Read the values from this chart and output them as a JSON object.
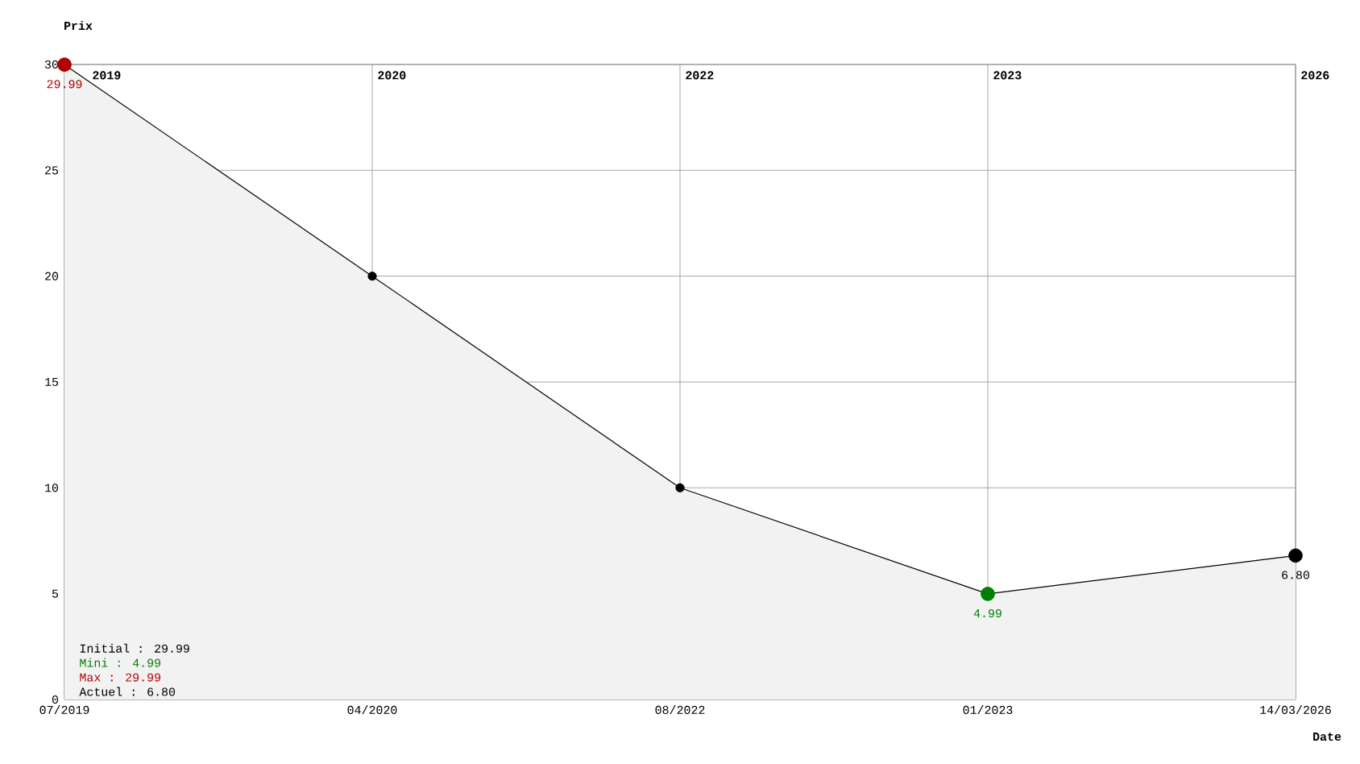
{
  "chart_data": {
    "type": "area",
    "xlabel": "Date",
    "ylabel": "Prix",
    "categories": [
      "07/2019",
      "04/2020",
      "08/2022",
      "01/2023",
      "14/03/2026"
    ],
    "series": [
      {
        "color": "#000000",
        "values": [
          29.99,
          20,
          10,
          4.99,
          6.8
        ]
      }
    ],
    "colors": [
      "#b00000",
      "#000000",
      "#000000",
      "#008000",
      "#000000"
    ],
    "value_labels": [
      "29.99",
      null,
      null,
      "4.99",
      "6.80"
    ],
    "marker": "circle",
    "grid": true,
    "ylim": [
      0,
      30
    ],
    "yticks": [
      0,
      5,
      10,
      15,
      20,
      25,
      30
    ],
    "annotations": [
      "2019",
      "2020",
      "2022",
      "2023",
      "2026",
      "Initial : 29.99",
      "Mini : 4.99",
      "Max : 29.99",
      "Actuel : 6.80"
    ]
  }
}
